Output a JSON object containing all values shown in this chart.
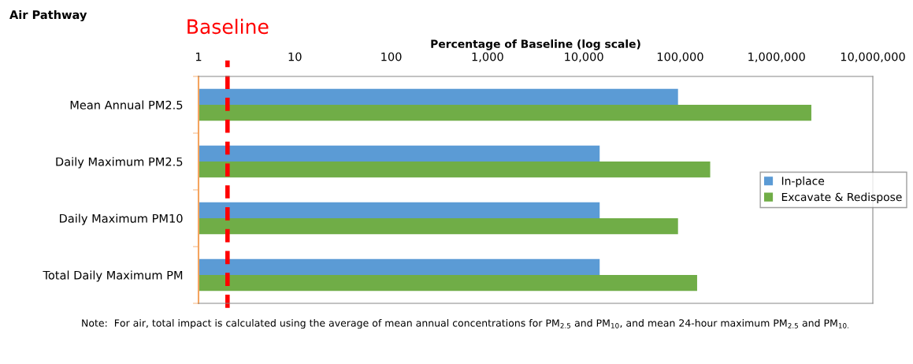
{
  "chart_data": {
    "type": "bar",
    "orientation": "horizontal",
    "title": "Air Pathway",
    "xlabel": "Percentage of Baseline (log scale)",
    "categories": [
      "Mean Annual PM2.5",
      "Daily Maximum PM2.5",
      "Daily Maximum PM10",
      "Total Daily Maximum PM"
    ],
    "series": [
      {
        "name": "In-place",
        "color": "#5b9bd5",
        "values": [
          95000,
          14600,
          14600,
          14600
        ]
      },
      {
        "name": "Excavate & Redispose",
        "color": "#70ad47",
        "values": [
          2300000,
          205000,
          95000,
          150000
        ]
      }
    ],
    "log": "x",
    "xlim": [
      1,
      10000000
    ],
    "xticks": [
      1,
      10,
      100,
      {
        "value": 1000,
        "label": "1,000"
      },
      {
        "value": 10000,
        "label": "10,000"
      },
      {
        "value": 100000,
        "label": "100,000"
      },
      {
        "value": 1000000,
        "label": "1,000,000"
      },
      {
        "value": 10000000,
        "label": "10,000,000"
      }
    ],
    "ref_lines": [
      {
        "axis": "x",
        "value": 2,
        "label": "Baseline",
        "color": "#ff0000",
        "line_style": "dashed"
      }
    ],
    "grid": false,
    "legend": "right",
    "annotations": [
      "Note:  For air, total impact is calculated using the average of mean annual concentrations for PM$_{2.5}$ and PM$_{10}$, and mean 24-hour maximum PM$_{2.5}$ and PM$_{10.}$"
    ]
  }
}
